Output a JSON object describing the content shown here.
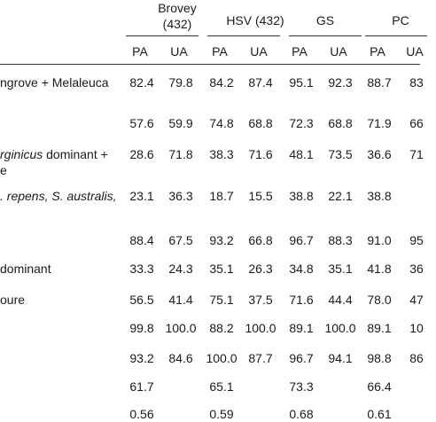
{
  "groups": [
    {
      "name": "Brovey",
      "sub": "(432)"
    },
    {
      "name": "HSV (432)",
      "sub": ""
    },
    {
      "name": "GS",
      "sub": ""
    },
    {
      "name": "PC",
      "sub": ""
    }
  ],
  "subheaders": [
    "PA",
    "UA",
    "PA",
    "UA",
    "PA",
    "UA",
    "PA",
    "UA"
  ],
  "rows": [
    {
      "label": "ngrove + Melaleuca",
      "label_em": "",
      "label2": "",
      "label2_em": "",
      "values": [
        "82.4",
        "79.8",
        "84.2",
        "87.4",
        "95.1",
        "92.3",
        "88.7",
        "83"
      ]
    },
    {
      "label": "",
      "label_em": "",
      "label2": "",
      "label2_em": "",
      "values": [
        "57.6",
        "59.9",
        "74.8",
        "68.8",
        "72.3",
        "68.8",
        "71.9",
        "66"
      ]
    },
    {
      "label": "",
      "label_em": "rginicus",
      "label_rest": " dominant +",
      "label2": "e",
      "label2_em": "",
      "values": [
        "28.6",
        "71.8",
        "38.3",
        "71.6",
        "48.1",
        "73.5",
        "36.6",
        "71"
      ]
    },
    {
      "label": "",
      "label_em": ". repens, S. australis,",
      "label_rest": "",
      "label2": "",
      "label2_em": "",
      "values": [
        "23.1",
        "36.3",
        "18.7",
        "15.5",
        "38.8",
        "22.1",
        "38.8",
        ""
      ]
    },
    {
      "label": "",
      "label_em": "",
      "label2": "",
      "label2_em": "",
      "values": [
        "88.4",
        "67.5",
        "93.2",
        "66.8",
        "96.7",
        "88.3",
        "91.0",
        "95"
      ]
    },
    {
      "label": "dominant",
      "label_em": "",
      "label2": "",
      "label2_em": "",
      "values": [
        "33.3",
        "24.3",
        "35.1",
        "26.3",
        "34.8",
        "35.1",
        "41.8",
        "36"
      ]
    },
    {
      "label": "oure",
      "label_em": "",
      "label2": "",
      "label2_em": "",
      "values": [
        "56.5",
        "41.4",
        "75.1",
        "37.5",
        "71.6",
        "44.4",
        "78.0",
        "47"
      ]
    },
    {
      "label": "",
      "label_em": "",
      "label2": "",
      "label2_em": "",
      "values": [
        "99.8",
        "100.0",
        "88.2",
        "100.0",
        "89.1",
        "100.0",
        "89.1",
        "10"
      ]
    },
    {
      "label": "",
      "label_em": "",
      "label2": "",
      "label2_em": "",
      "values": [
        "93.2",
        "84.6",
        "100.0",
        "87.7",
        "96.7",
        "94.1",
        "98.8",
        "86"
      ]
    },
    {
      "label": "",
      "label_em": "",
      "label2": "",
      "label2_em": "",
      "values": [
        "61.7",
        "",
        "65.1",
        "",
        "73.3",
        "",
        "66.4",
        ""
      ]
    },
    {
      "label": "",
      "label_em": "",
      "label2": "",
      "label2_em": "",
      "values": [
        "0.56",
        "",
        "0.59",
        "",
        "0.68",
        "",
        "0.61",
        ""
      ]
    }
  ]
}
